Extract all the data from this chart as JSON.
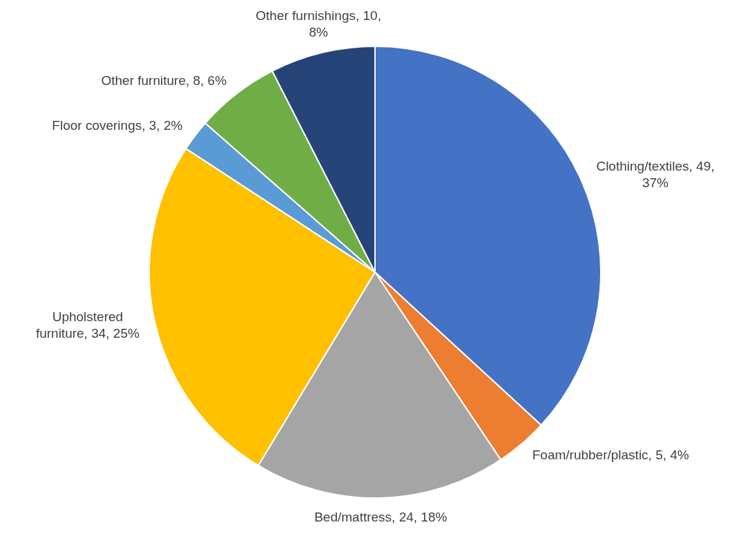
{
  "chart_data": {
    "type": "pie",
    "categories": [
      "Clothing/textiles",
      "Foam/rubber/plastic",
      "Bed/mattress",
      "Upholstered furniture",
      "Floor coverings",
      "Other furniture",
      "Other furnishings"
    ],
    "values": [
      49,
      5,
      24,
      34,
      3,
      8,
      10
    ],
    "value_labels": [
      "49, 37%",
      "5, 4%",
      "24, 18%",
      "34, 25%",
      "3, 2%",
      "8, 6%",
      "10, 8%"
    ],
    "colors": [
      "#4472c4",
      "#ed7d31",
      "#a5a5a5",
      "#ffc000",
      "#5b9bd5",
      "#70ad47",
      "#264478"
    ],
    "legend": false
  }
}
